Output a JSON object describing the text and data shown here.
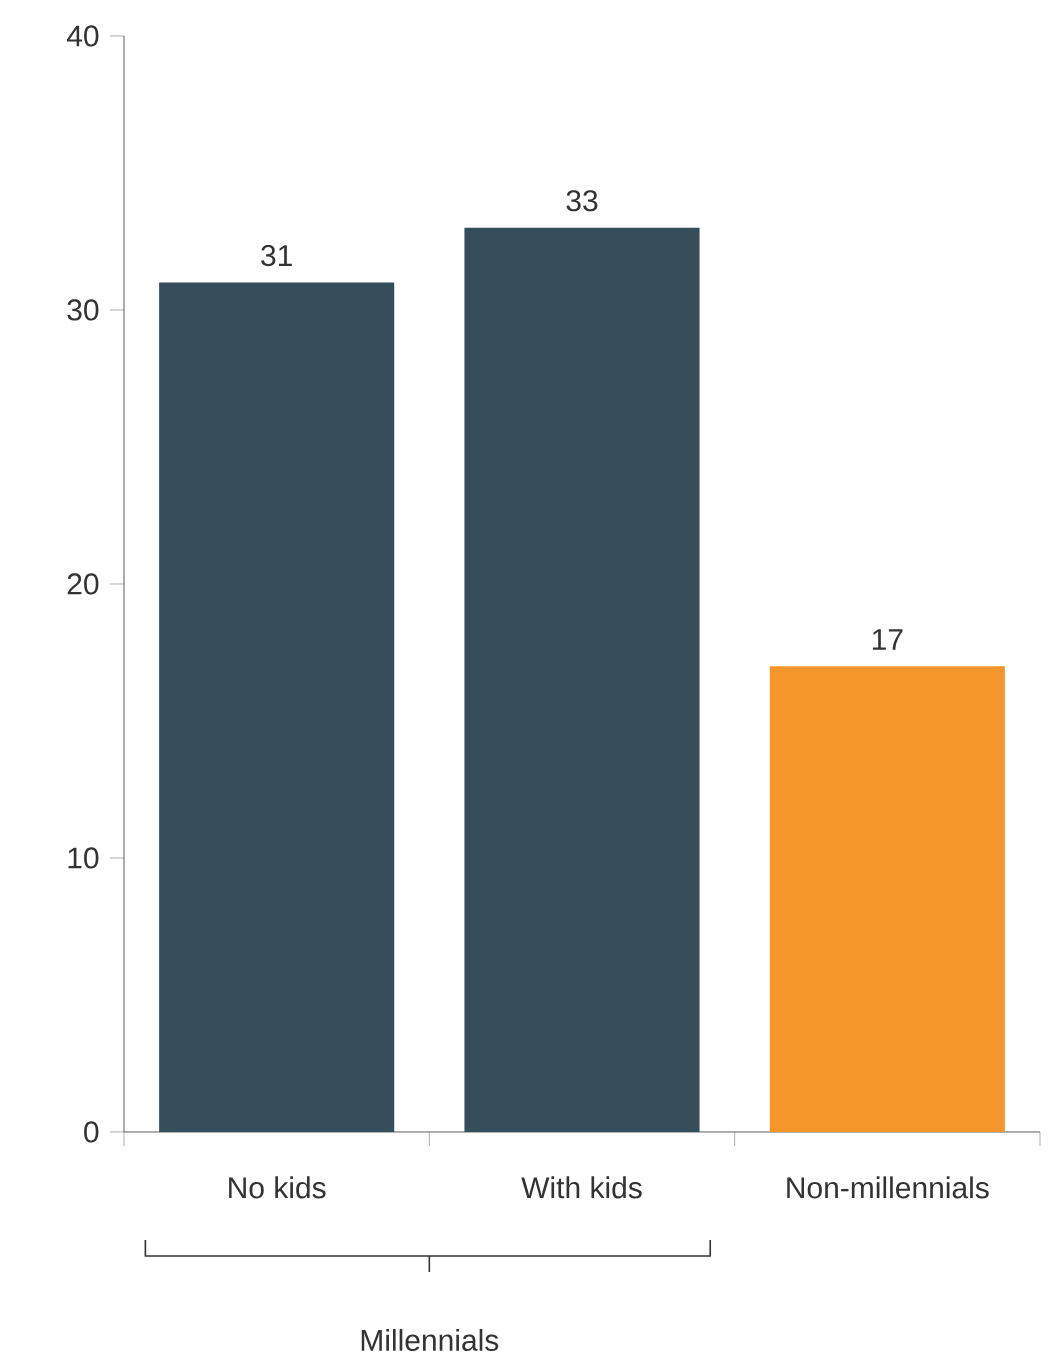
{
  "chart_data": {
    "type": "bar",
    "categories": [
      "No kids",
      "With kids",
      "Non-millennials"
    ],
    "values": [
      31,
      33,
      17
    ],
    "colors": [
      "#364d5a",
      "#364d5a",
      "#f5962a"
    ],
    "ylim": [
      0,
      40
    ],
    "yticks": [
      0,
      10,
      20,
      30,
      40
    ],
    "data_labels": true,
    "grid": false,
    "annotations": [
      "Millennials"
    ]
  }
}
